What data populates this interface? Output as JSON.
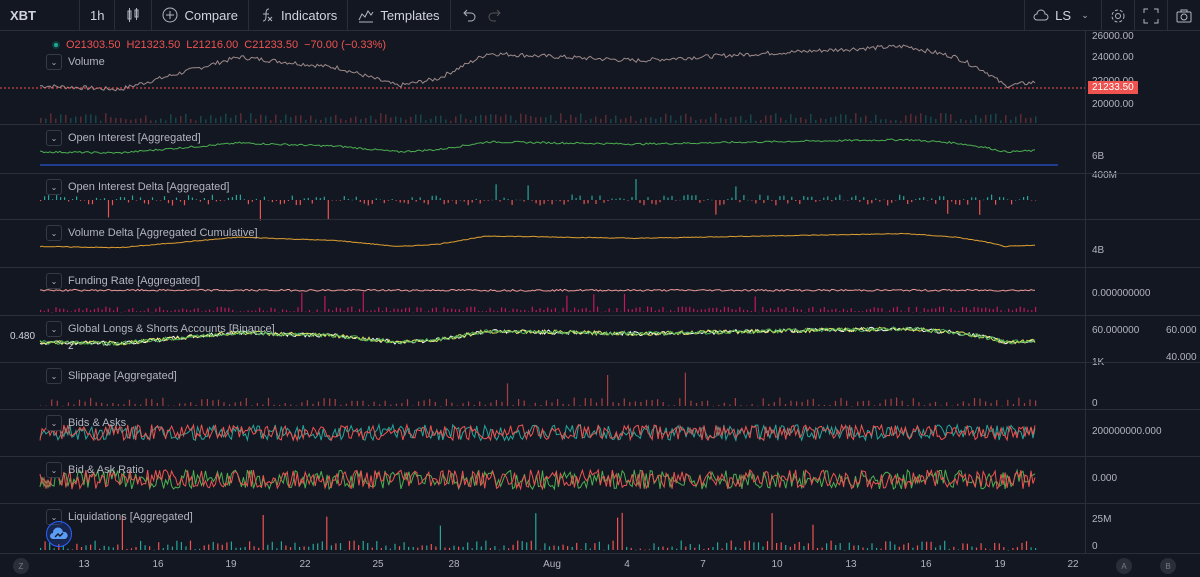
{
  "toolbar": {
    "symbol": "XBT",
    "interval": "1h",
    "compare": "Compare",
    "indicators": "Indicators",
    "templates": "Templates",
    "layout_name": "LS"
  },
  "ohlc": {
    "open": "O21303.50",
    "high": "H21323.50",
    "low": "L21216.00",
    "close": "C21233.50",
    "change": "−70.00 (−0.33%)"
  },
  "price_axis": {
    "ticks": [
      "26000.00",
      "24000.00",
      "22000.00",
      "20000.00"
    ],
    "last_price": "21233.50",
    "last_price_color": "#ef5350"
  },
  "panes": [
    {
      "label": "Volume",
      "scale": []
    },
    {
      "label": "Open Interest [Aggregated]",
      "scale": [
        "6B"
      ]
    },
    {
      "label": "Open Interest Delta [Aggregated]",
      "scale": [
        "400M"
      ]
    },
    {
      "label": "Volume Delta [Aggregated Cumulative]",
      "scale": [
        "4B"
      ]
    },
    {
      "label": "Funding Rate [Aggregated]",
      "scale": [
        "0.000000000"
      ]
    },
    {
      "label": "Global Longs & Shorts Accounts [Binance]",
      "scale": [
        "60.000000"
      ],
      "left_value": "0.480",
      "right_values": [
        "60.000",
        "40.000"
      ],
      "sub_label": "2"
    },
    {
      "label": "Slippage [Aggregated]",
      "scale": [
        "1K",
        "0"
      ]
    },
    {
      "label": "Bids & Asks",
      "scale": [
        "200000000.000"
      ]
    },
    {
      "label": "Bid & Ask Ratio",
      "scale": [
        "0.000"
      ]
    },
    {
      "label": "Liquidations [Aggregated]",
      "scale": [
        "25M",
        "0"
      ]
    }
  ],
  "time_axis": {
    "labels": [
      "13",
      "16",
      "19",
      "22",
      "25",
      "28",
      "Aug",
      "4",
      "7",
      "10",
      "13",
      "16",
      "19",
      "22"
    ],
    "left_corner": "Z",
    "right_corners": [
      "A",
      "B"
    ]
  },
  "colors": {
    "background": "#131722",
    "up": "#26a69a",
    "down": "#ef5350",
    "volume_delta": "#e0a030",
    "funding": "#c2185b",
    "longs_shorts": [
      "#ffffff",
      "#d4e157",
      "#4caf50"
    ]
  }
}
